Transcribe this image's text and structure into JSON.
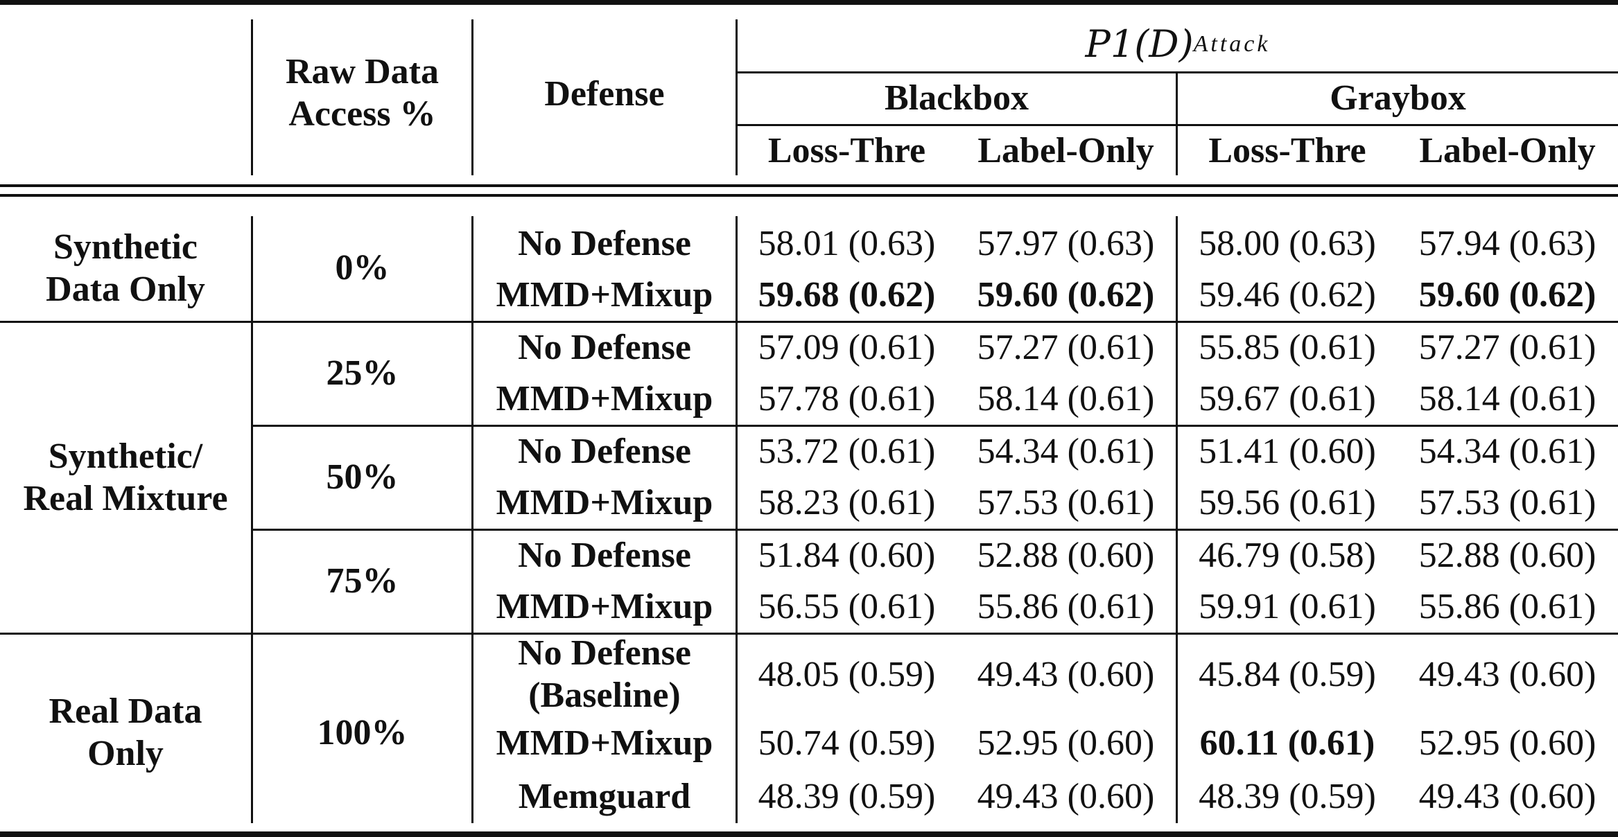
{
  "header": {
    "raw_access": "Raw Data Access %",
    "raw_access_l1": "Raw Data",
    "raw_access_l2": "Access %",
    "defense": "Defense",
    "attack_main": "P1(D)",
    "attack_sub": "Attack",
    "blackbox": "Blackbox",
    "graybox": "Graybox",
    "cols": [
      "Loss-Thre",
      "Label-Only",
      "Loss-Thre",
      "Label-Only"
    ]
  },
  "groups": [
    {
      "l1": "Synthetic",
      "l2": "Data Only"
    },
    {
      "l1": "Synthetic/",
      "l2": "Real Mixture"
    },
    {
      "l1": "Real Data",
      "l2": "Only"
    }
  ],
  "access": [
    "0%",
    "25%",
    "50%",
    "75%",
    "100%"
  ],
  "rows": [
    {
      "defense": "No Defense",
      "v": [
        "58.01 (0.63)",
        "57.97 (0.63)",
        "58.00 (0.63)",
        "57.94 (0.63)"
      ]
    },
    {
      "defense": "MMD+Mixup",
      "v": [
        "59.68 (0.62)",
        "59.60 (0.62)",
        "59.46 (0.62)",
        "59.60 (0.62)"
      ],
      "bold": [
        true,
        true,
        false,
        true
      ]
    },
    {
      "defense": "No Defense",
      "v": [
        "57.09 (0.61)",
        "57.27 (0.61)",
        "55.85 (0.61)",
        "57.27 (0.61)"
      ]
    },
    {
      "defense": "MMD+Mixup",
      "v": [
        "57.78 (0.61)",
        "58.14 (0.61)",
        "59.67 (0.61)",
        "58.14 (0.61)"
      ]
    },
    {
      "defense": "No Defense",
      "v": [
        "53.72 (0.61)",
        "54.34 (0.61)",
        "51.41 (0.60)",
        "54.34 (0.61)"
      ]
    },
    {
      "defense": "MMD+Mixup",
      "v": [
        "58.23 (0.61)",
        "57.53 (0.61)",
        "59.56 (0.61)",
        "57.53 (0.61)"
      ]
    },
    {
      "defense": "No Defense",
      "v": [
        "51.84 (0.60)",
        "52.88 (0.60)",
        "46.79 (0.58)",
        "52.88 (0.60)"
      ]
    },
    {
      "defense": "MMD+Mixup",
      "v": [
        "56.55 (0.61)",
        "55.86 (0.61)",
        "59.91 (0.61)",
        "55.86 (0.61)"
      ]
    },
    {
      "defense_l1": "No Defense",
      "defense_l2": "(Baseline)",
      "v": [
        "48.05 (0.59)",
        "49.43 (0.60)",
        "45.84 (0.59)",
        "49.43 (0.60)"
      ]
    },
    {
      "defense": "MMD+Mixup",
      "v": [
        "50.74 (0.59)",
        "52.95 (0.60)",
        "60.11 (0.61)",
        "52.95 (0.60)"
      ],
      "bold": [
        false,
        false,
        true,
        false
      ]
    },
    {
      "defense": "Memguard",
      "v": [
        "48.39 (0.59)",
        "49.43 (0.60)",
        "48.39 (0.59)",
        "49.43 (0.60)"
      ]
    }
  ]
}
